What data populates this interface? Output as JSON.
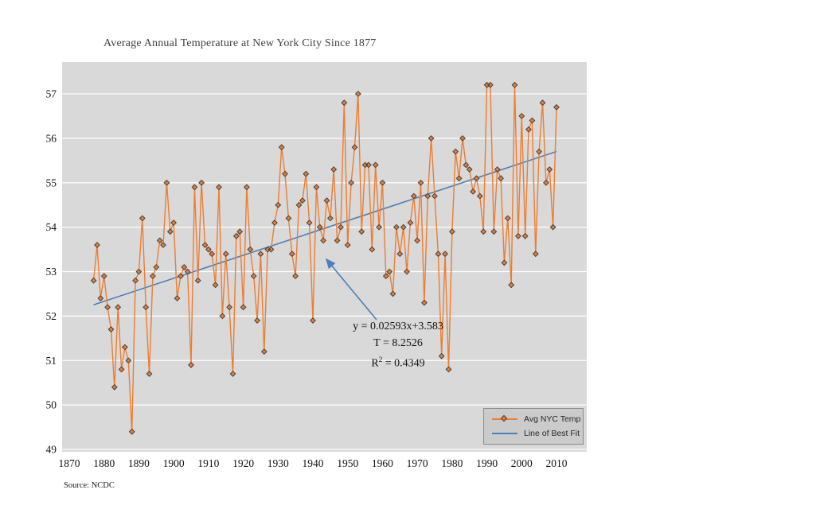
{
  "title": "Average Annual Temperature at New York City Since 1877",
  "source": "Source: NCDC",
  "annotation": {
    "equation": "y = 0.02593x+3.583",
    "t_line": "T = 8.2526",
    "r2_base": "R",
    "r2_sup": "2",
    "r2_rest": " = 0.4349"
  },
  "legend_items": [
    {
      "label": "Avg NYC Temp",
      "type": "series"
    },
    {
      "label": "Line of Best Fit",
      "type": "trend"
    }
  ],
  "colors": {
    "series": "#ED7D31",
    "marker_fill": "#ED7D31",
    "marker_stroke": "#404040",
    "trend": "#4E7EB6",
    "plot_bg": "#D9D9D9",
    "grid": "#FFFFFF",
    "title_text": "#3F3F3F",
    "axis_text": "#111111",
    "legend_bg": "#CBCBCB",
    "legend_border": "#8B8B8B"
  },
  "chart_data": {
    "type": "line",
    "title": "Average Annual Temperature at New York City Since 1877",
    "xlabel": "",
    "ylabel": "",
    "xlim": [
      1870,
      2015
    ],
    "ylim": [
      49,
      57
    ],
    "grid": true,
    "legend_position": "bottom-right-inside",
    "x_ticks": [
      1870,
      1880,
      1890,
      1900,
      1910,
      1920,
      1930,
      1940,
      1950,
      1960,
      1970,
      1980,
      1990,
      2000,
      2010
    ],
    "y_ticks": [
      49,
      50,
      51,
      52,
      53,
      54,
      55,
      56,
      57
    ],
    "x": [
      1877,
      1878,
      1879,
      1880,
      1881,
      1882,
      1883,
      1884,
      1885,
      1886,
      1887,
      1888,
      1889,
      1890,
      1891,
      1892,
      1893,
      1894,
      1895,
      1896,
      1897,
      1898,
      1899,
      1900,
      1901,
      1902,
      1903,
      1904,
      1905,
      1906,
      1907,
      1908,
      1909,
      1910,
      1911,
      1912,
      1913,
      1914,
      1915,
      1916,
      1917,
      1918,
      1919,
      1920,
      1921,
      1922,
      1923,
      1924,
      1925,
      1926,
      1927,
      1928,
      1929,
      1930,
      1931,
      1932,
      1933,
      1934,
      1935,
      1936,
      1937,
      1938,
      1939,
      1940,
      1941,
      1942,
      1943,
      1944,
      1945,
      1946,
      1947,
      1948,
      1949,
      1950,
      1951,
      1952,
      1953,
      1954,
      1955,
      1956,
      1957,
      1958,
      1959,
      1960,
      1961,
      1962,
      1963,
      1964,
      1965,
      1966,
      1967,
      1968,
      1969,
      1970,
      1971,
      1972,
      1973,
      1974,
      1975,
      1976,
      1977,
      1978,
      1979,
      1980,
      1981,
      1982,
      1983,
      1984,
      1985,
      1986,
      1987,
      1988,
      1989,
      1990,
      1991,
      1992,
      1993,
      1994,
      1995,
      1996,
      1997,
      1998,
      1999,
      2000,
      2001,
      2002,
      2003,
      2004,
      2005,
      2006,
      2007,
      2008,
      2009,
      2010
    ],
    "series": [
      {
        "name": "Avg NYC Temp",
        "values": [
          52.8,
          53.6,
          52.4,
          52.9,
          52.2,
          51.7,
          50.4,
          52.2,
          50.8,
          51.3,
          51.0,
          49.4,
          52.8,
          53.0,
          54.2,
          52.2,
          50.7,
          52.9,
          53.1,
          53.7,
          53.6,
          55.0,
          53.9,
          54.1,
          52.4,
          52.9,
          53.1,
          53.0,
          50.9,
          54.9,
          52.8,
          55.0,
          53.6,
          53.5,
          53.4,
          52.7,
          54.9,
          52.0,
          53.4,
          52.2,
          50.7,
          53.8,
          53.9,
          52.2,
          54.9,
          53.5,
          52.9,
          51.9,
          53.4,
          51.2,
          53.5,
          53.5,
          54.1,
          54.5,
          55.8,
          55.2,
          54.2,
          53.4,
          52.9,
          54.5,
          54.6,
          55.2,
          54.1,
          51.9,
          54.9,
          54.0,
          53.7,
          54.6,
          54.2,
          55.3,
          53.7,
          54.0,
          56.8,
          53.6,
          55.0,
          55.8,
          57.0,
          53.9,
          55.4,
          55.4,
          53.5,
          55.4,
          54.0,
          55.0,
          52.9,
          53.0,
          52.5,
          54.0,
          53.4,
          54.0,
          53.0,
          54.1,
          54.7,
          53.7,
          55.0,
          52.3,
          54.7,
          56.0,
          54.7,
          53.4,
          51.1,
          53.4,
          50.8,
          53.9,
          55.7,
          55.1,
          56.0,
          55.4,
          55.3,
          54.8,
          55.1,
          54.7,
          53.9,
          57.2,
          57.2,
          53.9,
          55.3,
          55.1,
          53.2,
          54.2,
          52.7,
          57.2,
          53.8,
          56.5,
          53.8,
          56.2,
          56.4,
          53.4,
          55.7,
          56.8,
          55.0,
          55.3,
          54.0,
          56.7
        ]
      }
    ],
    "trendline": {
      "name": "Line of Best Fit",
      "slope": 0.02593,
      "intercept": 3.583,
      "equation": "y = 0.02593x+3.583",
      "t_stat": 8.2526,
      "r_squared": 0.4349,
      "x_start": 1877,
      "x_end": 2010
    }
  }
}
